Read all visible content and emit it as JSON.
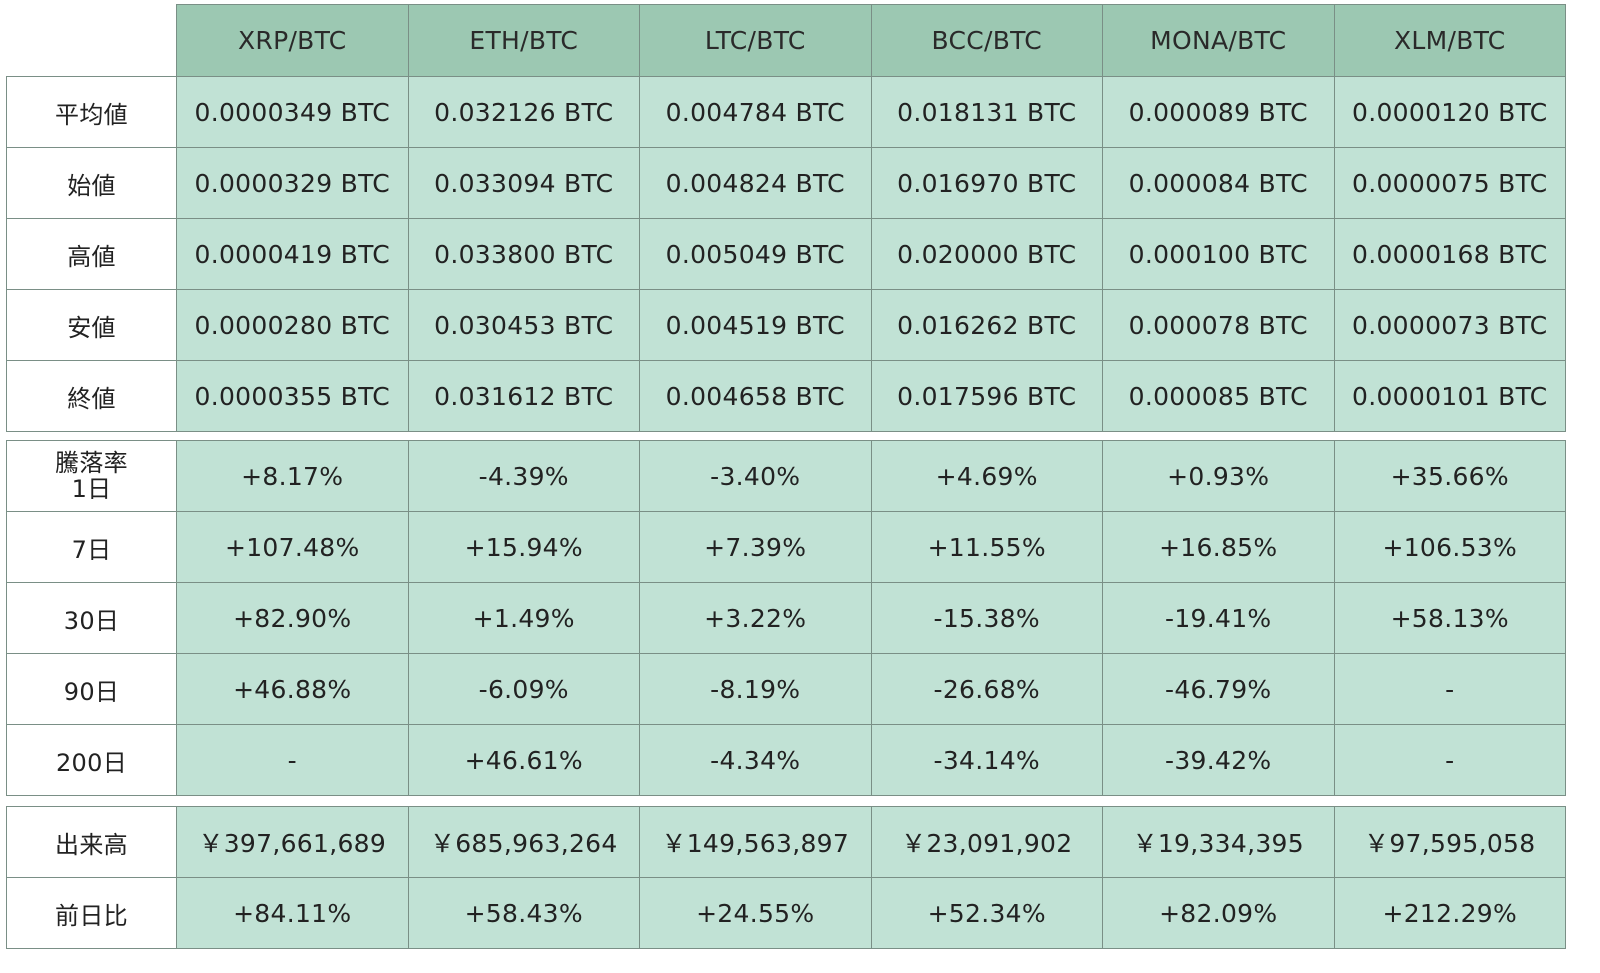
{
  "columns": [
    "XRP/BTC",
    "ETH/BTC",
    "LTC/BTC",
    "BCC/BTC",
    "MONA/BTC",
    "XLM/BTC"
  ],
  "colors": {
    "header_bg": "#9cc8b2",
    "cell_bg": "#c1e2d5",
    "label_bg": "#ffffff",
    "border": "#7a8f86"
  },
  "price_table": {
    "rows": [
      {
        "label": "平均値",
        "values": [
          "0.0000349 BTC",
          "0.032126 BTC",
          "0.004784 BTC",
          "0.018131 BTC",
          "0.000089 BTC",
          "0.0000120 BTC"
        ]
      },
      {
        "label": "始値",
        "values": [
          "0.0000329 BTC",
          "0.033094 BTC",
          "0.004824 BTC",
          "0.016970 BTC",
          "0.000084 BTC",
          "0.0000075 BTC"
        ]
      },
      {
        "label": "高値",
        "values": [
          "0.0000419 BTC",
          "0.033800 BTC",
          "0.005049 BTC",
          "0.020000 BTC",
          "0.000100 BTC",
          "0.0000168 BTC"
        ]
      },
      {
        "label": "安値",
        "values": [
          "0.0000280 BTC",
          "0.030453 BTC",
          "0.004519 BTC",
          "0.016262 BTC",
          "0.000078 BTC",
          "0.0000073 BTC"
        ]
      },
      {
        "label": "終値",
        "values": [
          "0.0000355 BTC",
          "0.031612 BTC",
          "0.004658 BTC",
          "0.017596 BTC",
          "0.000085 BTC",
          "0.0000101 BTC"
        ]
      }
    ]
  },
  "change_table": {
    "group_label": "騰落率",
    "rows": [
      {
        "label": "1日",
        "values": [
          "+8.17%",
          "-4.39%",
          "-3.40%",
          "+4.69%",
          "+0.93%",
          "+35.66%"
        ]
      },
      {
        "label": "7日",
        "values": [
          "+107.48%",
          "+15.94%",
          "+7.39%",
          "+11.55%",
          "+16.85%",
          "+106.53%"
        ]
      },
      {
        "label": "30日",
        "values": [
          "+82.90%",
          "+1.49%",
          "+3.22%",
          "-15.38%",
          "-19.41%",
          "+58.13%"
        ]
      },
      {
        "label": "90日",
        "values": [
          "+46.88%",
          "-6.09%",
          "-8.19%",
          "-26.68%",
          "-46.79%",
          "-"
        ]
      },
      {
        "label": "200日",
        "values": [
          "-",
          "+46.61%",
          "-4.34%",
          "-34.14%",
          "-39.42%",
          "-"
        ]
      }
    ]
  },
  "volume_table": {
    "rows": [
      {
        "label": "出来高",
        "values": [
          "￥397,661,689",
          "￥685,963,264",
          "￥149,563,897",
          "￥23,091,902",
          "￥19,334,395",
          "￥97,595,058"
        ]
      },
      {
        "label": "前日比",
        "values": [
          "+84.11%",
          "+58.43%",
          "+24.55%",
          "+52.34%",
          "+82.09%",
          "+212.29%"
        ]
      }
    ]
  },
  "chart_data": {
    "type": "table",
    "title": "",
    "categories": [
      "XRP/BTC",
      "ETH/BTC",
      "LTC/BTC",
      "BCC/BTC",
      "MONA/BTC",
      "XLM/BTC"
    ],
    "series": [
      {
        "name": "平均値",
        "unit": "BTC",
        "values": [
          3.49e-05,
          0.032126,
          0.004784,
          0.018131,
          8.9e-05,
          1.2e-05
        ]
      },
      {
        "name": "始値",
        "unit": "BTC",
        "values": [
          3.29e-05,
          0.033094,
          0.004824,
          0.01697,
          8.4e-05,
          7.5e-06
        ]
      },
      {
        "name": "高値",
        "unit": "BTC",
        "values": [
          4.19e-05,
          0.0338,
          0.005049,
          0.02,
          0.0001,
          1.68e-05
        ]
      },
      {
        "name": "安値",
        "unit": "BTC",
        "values": [
          2.8e-05,
          0.030453,
          0.004519,
          0.016262,
          7.8e-05,
          7.3e-06
        ]
      },
      {
        "name": "終値",
        "unit": "BTC",
        "values": [
          3.55e-05,
          0.031612,
          0.004658,
          0.017596,
          8.5e-05,
          1.01e-05
        ]
      },
      {
        "name": "騰落率 1日",
        "unit": "%",
        "values": [
          8.17,
          -4.39,
          -3.4,
          4.69,
          0.93,
          35.66
        ]
      },
      {
        "name": "騰落率 7日",
        "unit": "%",
        "values": [
          107.48,
          15.94,
          7.39,
          11.55,
          16.85,
          106.53
        ]
      },
      {
        "name": "騰落率 30日",
        "unit": "%",
        "values": [
          82.9,
          1.49,
          3.22,
          -15.38,
          -19.41,
          58.13
        ]
      },
      {
        "name": "騰落率 90日",
        "unit": "%",
        "values": [
          46.88,
          -6.09,
          -8.19,
          -26.68,
          -46.79,
          null
        ]
      },
      {
        "name": "騰落率 200日",
        "unit": "%",
        "values": [
          null,
          46.61,
          -4.34,
          -34.14,
          -39.42,
          null
        ]
      },
      {
        "name": "出来高",
        "unit": "JPY",
        "values": [
          397661689,
          685963264,
          149563897,
          23091902,
          19334395,
          97595058
        ]
      },
      {
        "name": "前日比",
        "unit": "%",
        "values": [
          84.11,
          58.43,
          24.55,
          52.34,
          82.09,
          212.29
        ]
      }
    ],
    "xlabel": "",
    "ylabel": "",
    "grid": true,
    "legend": "none"
  }
}
